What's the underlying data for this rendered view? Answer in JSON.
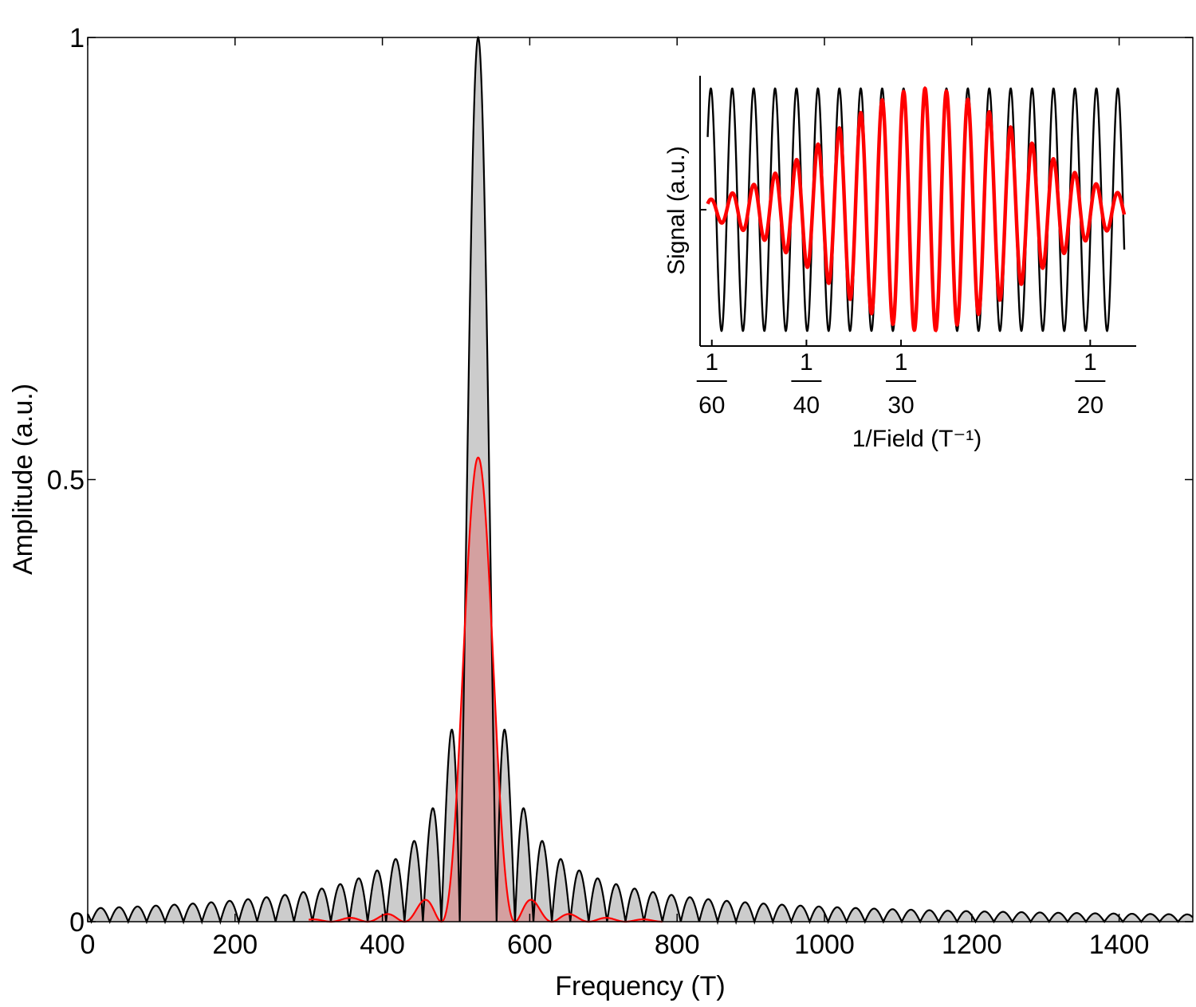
{
  "chart_data": [
    {
      "type": "area",
      "xlabel": "Frequency (T)",
      "ylabel": "Amplitude (a.u.)",
      "xlim": [
        0,
        1500
      ],
      "ylim": [
        0,
        1
      ],
      "xticks": [
        0,
        200,
        400,
        600,
        800,
        1000,
        1200,
        1400
      ],
      "yticks": [
        0,
        0.5,
        1
      ],
      "ytick_labels": [
        "0",
        "0.5",
        "1"
      ],
      "grid": false,
      "series": [
        {
          "color": "#000000",
          "fill": "#cccccc",
          "peak_x": 530,
          "peak_y": 1.0,
          "sidelobe_spacing": 25,
          "x": [
            0,
            25,
            100,
            200,
            300,
            400,
            450,
            470,
            495,
            530,
            565,
            590,
            610,
            700,
            800,
            900,
            1000,
            1200,
            1400,
            1500
          ],
          "y": [
            0.015,
            0.012,
            0.013,
            0.019,
            0.03,
            0.07,
            0.11,
            0.0,
            0.21,
            1.0,
            0.21,
            0.0,
            0.11,
            0.06,
            0.035,
            0.026,
            0.02,
            0.013,
            0.01,
            0.01
          ]
        },
        {
          "color": "#ff0000",
          "fill": "#d4a0a0",
          "peak_x": 530,
          "peak_y": 0.525,
          "x": [
            480,
            500,
            510,
            520,
            530,
            540,
            550,
            560,
            580
          ],
          "y": [
            0.0,
            0.08,
            0.2,
            0.4,
            0.525,
            0.4,
            0.2,
            0.08,
            0.0
          ]
        }
      ]
    },
    {
      "type": "line",
      "role": "inset",
      "xlabel": "1/Field (T⁻¹)",
      "ylabel": "Signal (a.u.)",
      "xlim": [
        0.01563,
        0.05405
      ],
      "ylim": [
        -1.15,
        1.15
      ],
      "xticks": [
        0.016667,
        0.025,
        0.033333,
        0.05
      ],
      "xtick_numerators": [
        "1",
        "1",
        "1",
        "1"
      ],
      "xtick_denominators": [
        "60",
        "40",
        "30",
        "20"
      ],
      "grid": false,
      "series": [
        {
          "color": "#000000",
          "frequency": 530,
          "amplitude": 1.0,
          "x": [
            0.0163,
            0.053
          ],
          "y": [
            0.6,
            0.98
          ]
        },
        {
          "color": "#ff0000",
          "frequency": 530,
          "envelope_center_x": 0.0355,
          "envelope_max": 1.0,
          "envelope_at_ends": 0.08,
          "x": [
            0.0163,
            0.0355,
            0.053
          ],
          "y": [
            0.0,
            1.0,
            0.0
          ]
        }
      ]
    }
  ]
}
